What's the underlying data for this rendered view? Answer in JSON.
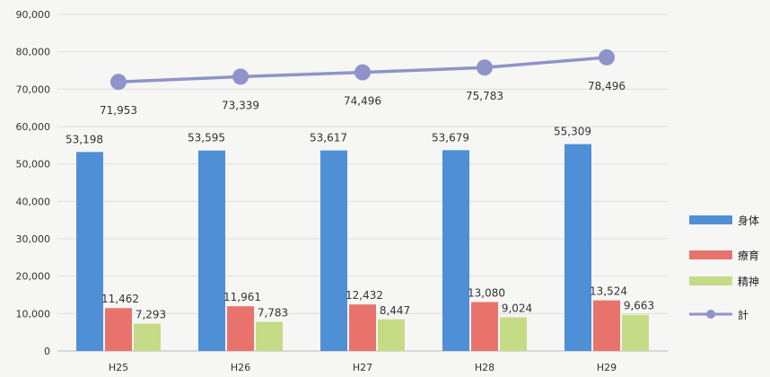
{
  "chart_data": {
    "type": "bar",
    "categories": [
      "H25",
      "H26",
      "H27",
      "H28",
      "H29"
    ],
    "ylim": [
      0,
      90000
    ],
    "yticks": [
      0,
      10000,
      20000,
      30000,
      40000,
      50000,
      60000,
      70000,
      80000,
      90000
    ],
    "ytick_labels": [
      "0",
      "10,000",
      "20,000",
      "30,000",
      "40,000",
      "50,000",
      "60,000",
      "70,000",
      "80,000",
      "90,000"
    ],
    "grid": true,
    "legend_position": "right",
    "series": [
      {
        "name": "身体",
        "kind": "bar",
        "color": "#4f8fd6",
        "values": [
          53198,
          53595,
          53617,
          53679,
          55309
        ],
        "labels": [
          "53,198",
          "53,595",
          "53,617",
          "53,679",
          "55,309"
        ]
      },
      {
        "name": "療育",
        "kind": "bar",
        "color": "#e8736d",
        "values": [
          11462,
          11961,
          12432,
          13080,
          13524
        ],
        "labels": [
          "11,462",
          "11,961",
          "12,432",
          "13,080",
          "13,524"
        ]
      },
      {
        "name": "精神",
        "kind": "bar",
        "color": "#c6db86",
        "values": [
          7293,
          7783,
          8447,
          9024,
          9663
        ],
        "labels": [
          "7,293",
          "7,783",
          "8,447",
          "9,024",
          "9,663"
        ]
      },
      {
        "name": "計",
        "kind": "line",
        "color": "#8f93c9",
        "values": [
          71953,
          73339,
          74496,
          75783,
          78496
        ],
        "labels": [
          "71,953",
          "73,339",
          "74,496",
          "75,783",
          "78,496"
        ]
      }
    ]
  }
}
